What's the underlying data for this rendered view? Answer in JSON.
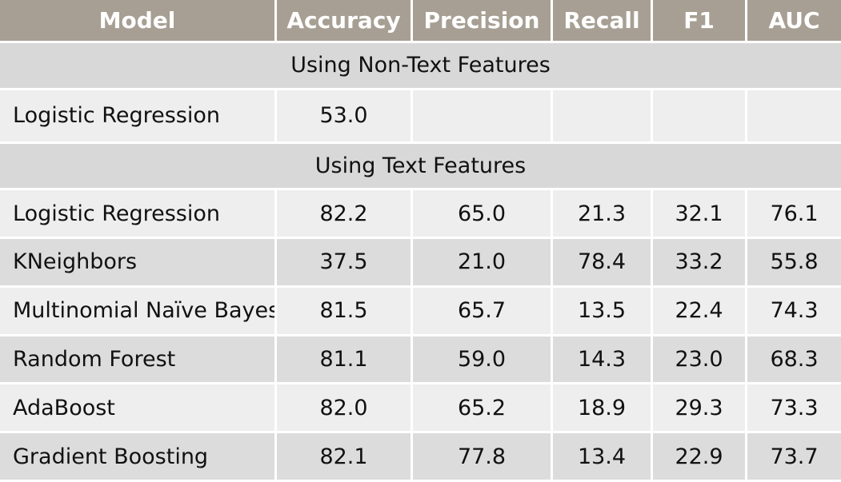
{
  "chart_data": {
    "type": "table",
    "columns": [
      "Model",
      "Accuracy",
      "Precision",
      "Recall",
      "F1",
      "AUC"
    ],
    "sections": [
      {
        "label": "Using Non-Text Features",
        "rows": [
          {
            "model": "Logistic Regression",
            "values": [
              "53.0",
              "",
              "",
              "",
              ""
            ]
          }
        ]
      },
      {
        "label": "Using Text Features",
        "rows": [
          {
            "model": "Logistic Regression",
            "values": [
              "82.2",
              "65.0",
              "21.3",
              "32.1",
              "76.1"
            ]
          },
          {
            "model": "KNeighbors",
            "values": [
              "37.5",
              "21.0",
              "78.4",
              "33.2",
              "55.8"
            ]
          },
          {
            "model": "Multinomial Naïve Bayes",
            "values": [
              "81.5",
              "65.7",
              "13.5",
              "22.4",
              "74.3"
            ]
          },
          {
            "model": "Random Forest",
            "values": [
              "81.1",
              "59.0",
              "14.3",
              "23.0",
              "68.3"
            ]
          },
          {
            "model": "AdaBoost",
            "values": [
              "82.0",
              "65.2",
              "18.9",
              "29.3",
              "73.3"
            ]
          },
          {
            "model": "Gradient Boosting",
            "values": [
              "82.1",
              "77.8",
              "13.4",
              "22.9",
              "73.7"
            ]
          }
        ]
      }
    ]
  },
  "colors": {
    "header_bg": "#a79f93",
    "section_bg": "#d8d8d8",
    "row_light": "#eeeeee",
    "row_dark": "#dcdcdc"
  }
}
